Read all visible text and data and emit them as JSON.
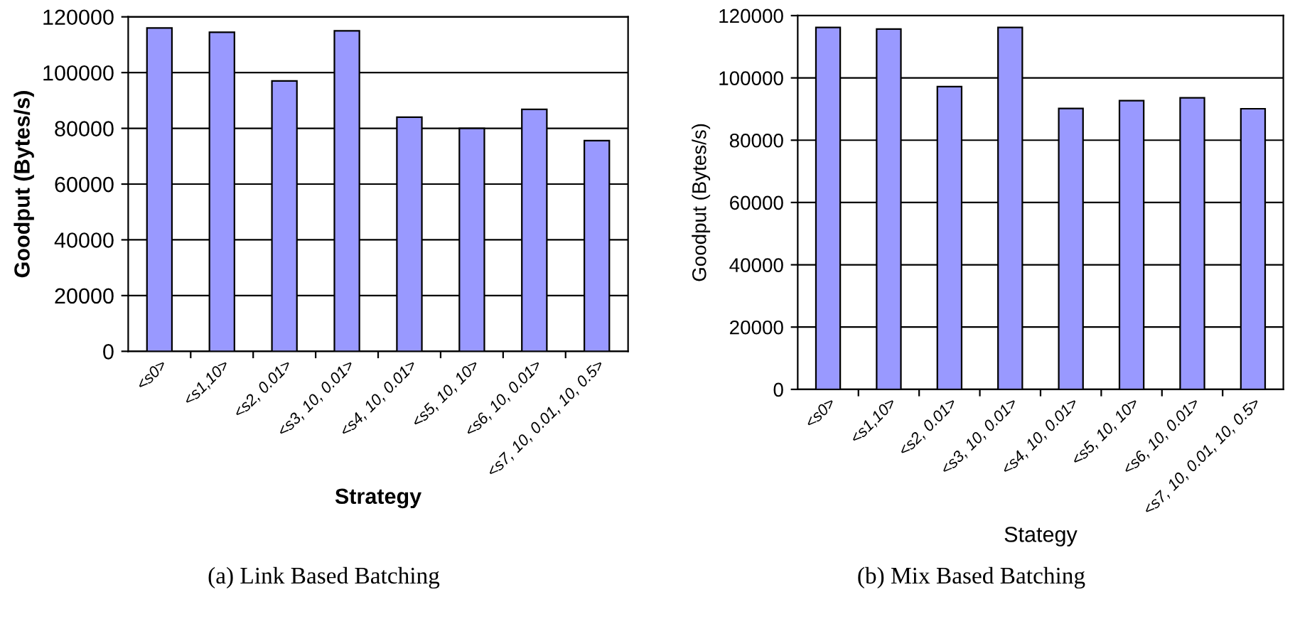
{
  "chart_data": [
    {
      "type": "bar",
      "xlabel": "Strategy",
      "ylabel": "Goodput (Bytes/s)",
      "categories": [
        "<s0>",
        "<s1,10>",
        "<s2, 0.01>",
        "<s3, 10, 0.01>",
        "<s4, 10, 0.01>",
        "<s5, 10, 10>",
        "<s6, 10, 0.01>",
        "<s7, 10, 0.01, 10, 0.5>"
      ],
      "values": [
        116000,
        114500,
        97000,
        115000,
        84000,
        80000,
        86800,
        75600
      ],
      "color": "#9999ff",
      "ylim": [
        0,
        120000
      ],
      "yticks": [
        0,
        20000,
        40000,
        60000,
        80000,
        100000,
        120000
      ],
      "grid": "y",
      "annotations": [
        "(a) Link Based Batching"
      ]
    },
    {
      "type": "bar",
      "xlabel": "Stategy",
      "ylabel": "Goodput (Bytes/s)",
      "categories": [
        "<s0>",
        "<s1,10>",
        "<s2, 0.01>",
        "<s3, 10, 0.01>",
        "<s4, 10, 0.01>",
        "<s5, 10, 10>",
        "<s6, 10, 0.01>",
        "<s7, 10, 0.01, 10, 0.5>"
      ],
      "values": [
        116200,
        115700,
        97200,
        116200,
        90200,
        92700,
        93600,
        90100
      ],
      "color": "#9999ff",
      "ylim": [
        0,
        120000
      ],
      "yticks": [
        0,
        20000,
        40000,
        60000,
        80000,
        100000,
        120000
      ],
      "grid": "y",
      "annotations": [
        "(b) Mix Based Batching"
      ]
    }
  ]
}
